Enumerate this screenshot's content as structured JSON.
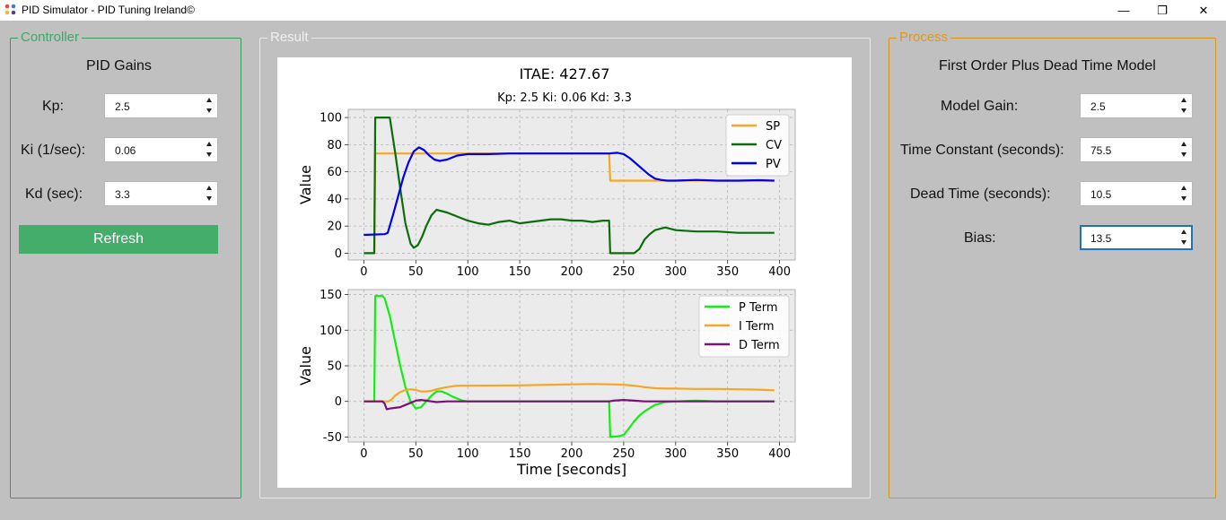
{
  "window": {
    "title": "PID Simulator - PID Tuning Ireland©",
    "minimize_glyph": "—",
    "restore_glyph": "❐",
    "close_glyph": "✕"
  },
  "controller": {
    "group_title": "Controller",
    "heading": "PID Gains",
    "kp_label": "Kp:",
    "kp_value": "2.5",
    "ki_label": "Ki (1/sec):",
    "ki_value": "0.06",
    "kd_label": "Kd (sec):",
    "kd_value": "3.3",
    "refresh_label": "Refresh"
  },
  "result": {
    "group_title": "Result"
  },
  "process": {
    "group_title": "Process",
    "heading": "First Order Plus Dead Time Model",
    "gain_label": "Model Gain:",
    "gain_value": "2.5",
    "tau_label": "Time Constant (seconds):",
    "tau_value": "75.5",
    "dead_label": "Dead Time (seconds):",
    "dead_value": "10.5",
    "bias_label": "Bias:",
    "bias_value": "13.5"
  },
  "chart_data": [
    {
      "type": "line",
      "title": "ITAE: 427.67",
      "subtitle": "Kp: 2.5  Ki: 0.06  Kd: 3.3",
      "xlabel": "",
      "ylabel": "Value",
      "xlim": [
        -15,
        415
      ],
      "ylim": [
        -5,
        106
      ],
      "xticks": [
        0,
        50,
        100,
        150,
        200,
        250,
        300,
        350,
        400
      ],
      "yticks": [
        0,
        20,
        40,
        60,
        80,
        100
      ],
      "grid": true,
      "legend": "top-right",
      "series": [
        {
          "name": "SP",
          "color": "#f5a623",
          "x": [
            0,
            10,
            11,
            236,
            237,
            395
          ],
          "y": [
            0,
            0,
            73.5,
            73.5,
            53.5,
            53.5
          ]
        },
        {
          "name": "CV",
          "color": "#0b6e0b",
          "x": [
            0,
            9,
            10,
            11,
            25,
            30,
            35,
            40,
            45,
            48,
            52,
            56,
            60,
            65,
            70,
            75,
            80,
            90,
            100,
            110,
            120,
            130,
            140,
            150,
            160,
            170,
            180,
            190,
            200,
            210,
            220,
            230,
            236,
            237,
            250,
            260,
            265,
            270,
            275,
            280,
            290,
            300,
            320,
            340,
            360,
            380,
            395
          ],
          "y": [
            0,
            0,
            0,
            100,
            100,
            75,
            48,
            22,
            7,
            4,
            6,
            12,
            20,
            28,
            32,
            31,
            30,
            27,
            24,
            22,
            21,
            23,
            24,
            22,
            23,
            24,
            25,
            25,
            24,
            24,
            23,
            24,
            24,
            0,
            0,
            0,
            3,
            10,
            14,
            17,
            19,
            17,
            16,
            16,
            15,
            15,
            15
          ]
        },
        {
          "name": "PV",
          "color": "#0000ee",
          "x": [
            0,
            20,
            23,
            28,
            33,
            38,
            43,
            48,
            53,
            58,
            63,
            68,
            73,
            80,
            90,
            100,
            120,
            140,
            160,
            180,
            200,
            220,
            236,
            244,
            250,
            256,
            262,
            268,
            274,
            280,
            286,
            292,
            300,
            320,
            340,
            360,
            380,
            395
          ],
          "y": [
            13.5,
            14,
            15,
            28,
            42,
            56,
            67,
            75,
            78,
            76,
            72,
            69,
            68,
            69,
            72,
            73,
            73,
            73.5,
            73.5,
            73.5,
            73.5,
            73.5,
            73.5,
            74,
            73,
            70,
            66,
            62,
            58,
            55,
            54,
            53.5,
            53.5,
            54,
            53.5,
            53.5,
            53.8,
            53.5
          ]
        }
      ]
    },
    {
      "type": "line",
      "title": "",
      "xlabel": "Time [seconds]",
      "ylabel": "Value",
      "xlim": [
        -15,
        415
      ],
      "ylim": [
        -57,
        157
      ],
      "xticks": [
        0,
        50,
        100,
        150,
        200,
        250,
        300,
        350,
        400
      ],
      "yticks": [
        -50,
        0,
        50,
        100,
        150
      ],
      "grid": true,
      "legend": "top-right",
      "series": [
        {
          "name": "P Term",
          "color": "#11ee11",
          "x": [
            0,
            9,
            10,
            11,
            18,
            20,
            25,
            30,
            35,
            40,
            45,
            50,
            55,
            60,
            65,
            70,
            75,
            80,
            85,
            90,
            95,
            100,
            120,
            140,
            160,
            180,
            200,
            220,
            236,
            237,
            245,
            250,
            255,
            260,
            265,
            270,
            280,
            290,
            300,
            320,
            340,
            360,
            380,
            395
          ],
          "y": [
            0,
            0,
            0,
            148,
            148,
            145,
            120,
            85,
            50,
            20,
            0,
            -10,
            -8,
            0,
            8,
            14,
            14,
            11,
            7,
            4,
            1,
            0,
            0,
            0,
            0,
            0,
            0,
            0,
            0,
            -50,
            -49,
            -47,
            -38,
            -28,
            -20,
            -14,
            -5,
            -1,
            0,
            1,
            0,
            0,
            0,
            0
          ]
        },
        {
          "name": "I Term",
          "color": "#f5a623",
          "x": [
            0,
            24,
            27,
            30,
            35,
            40,
            45,
            50,
            55,
            60,
            65,
            70,
            80,
            90,
            100,
            150,
            200,
            220,
            236,
            250,
            260,
            270,
            280,
            290,
            300,
            320,
            340,
            360,
            380,
            395
          ],
          "y": [
            0,
            0,
            3,
            8,
            13,
            16,
            17,
            16,
            14,
            14,
            15,
            17,
            20,
            22,
            22,
            22.5,
            24,
            24.5,
            24,
            23.5,
            22,
            20,
            18.5,
            18,
            18,
            17.5,
            17.5,
            17,
            16.5,
            15.5
          ]
        },
        {
          "name": "D Term",
          "color": "#7a117a",
          "x": [
            0,
            18,
            20,
            22,
            25,
            30,
            35,
            40,
            45,
            50,
            55,
            60,
            65,
            70,
            80,
            100,
            150,
            200,
            236,
            240,
            250,
            260,
            270,
            280,
            300,
            350,
            395
          ],
          "y": [
            0,
            0,
            -3,
            -11,
            -10,
            -9,
            -8,
            -5,
            -2,
            1,
            2,
            1,
            0,
            -1,
            0,
            0,
            0,
            0,
            0,
            1,
            2,
            1,
            0,
            0,
            0,
            0,
            0
          ]
        }
      ]
    }
  ]
}
